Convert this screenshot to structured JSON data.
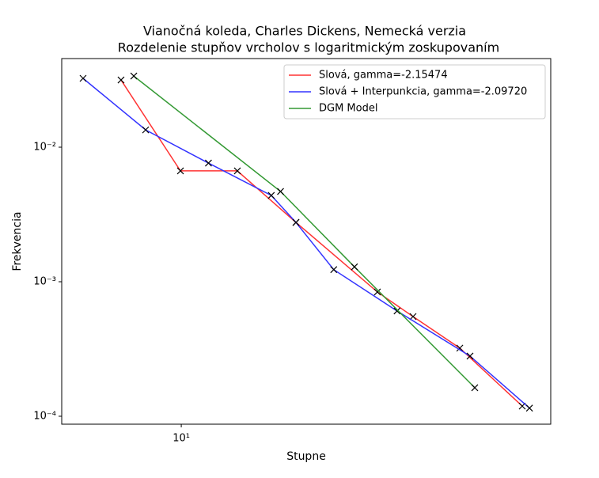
{
  "chart_data": {
    "type": "line",
    "title": "Vianočná koleda, Charles Dickens, Nemecká verzia",
    "subtitle": "Rozdelenie stupňov vrcholov s logaritmickým zoskupovaním",
    "x_label": "Stupne",
    "y_label": "Frekvencia",
    "xscale": "log",
    "yscale": "log",
    "legend": "upper right",
    "marker": "x",
    "xlim": [
      4.83,
      94.8
    ],
    "ylim": [
      8.73e-05,
      0.0456
    ],
    "xticks": [
      {
        "value": 10,
        "label": "10¹"
      }
    ],
    "yticks": [
      {
        "value": 0.0001,
        "label": "10⁻⁴"
      },
      {
        "value": 0.001,
        "label": "10⁻³"
      },
      {
        "value": 0.01,
        "label": "10⁻²"
      }
    ],
    "series": [
      {
        "name": "Slová, gamma=-2.15474",
        "color": "#ff3333",
        "x": [
          6.93,
          9.95,
          14.07,
          20.1,
          33.0,
          41.0,
          54.5,
          79.7
        ],
        "values": [
          0.0316,
          0.00667,
          0.00667,
          0.00276,
          0.000839,
          0.000551,
          0.000321,
          0.000119
        ]
      },
      {
        "name": "Slová + Interpunkcia, gamma=-2.09720",
        "color": "#3333ff",
        "x": [
          5.5,
          8.05,
          11.8,
          17.3,
          20.1,
          25.3,
          37.2,
          58.0,
          83.3
        ],
        "values": [
          0.0325,
          0.01345,
          0.00762,
          0.00438,
          0.00276,
          0.00123,
          0.000606,
          0.00028,
          0.000115
        ]
      },
      {
        "name": "DGM Model",
        "color": "#339933",
        "x": [
          7.49,
          18.3,
          28.7,
          59.7
        ],
        "values": [
          0.0338,
          0.00469,
          0.00129,
          0.000163
        ]
      }
    ]
  }
}
